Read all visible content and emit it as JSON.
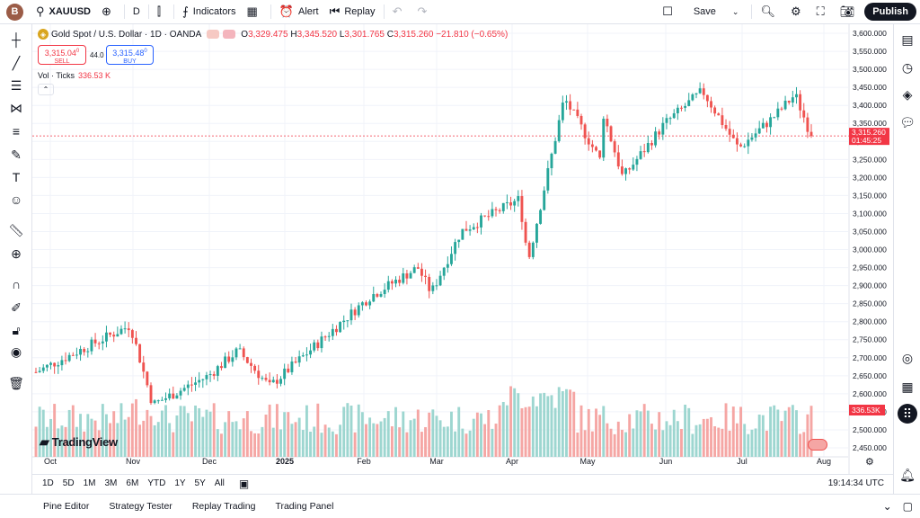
{
  "topbar": {
    "avatar_letter": "B",
    "symbol": "XAUUSD",
    "add_icon": "plus-circle-icon",
    "interval": "D",
    "indicators": "Indicators",
    "alert": "Alert",
    "replay": "Replay",
    "save": "Save",
    "publish": "Publish"
  },
  "legend": {
    "title": "Gold Spot / U.S. Dollar · 1D · OANDA",
    "open_label": "O",
    "open": "3,329.475",
    "high_label": "H",
    "high": "3,345.520",
    "low_label": "L",
    "low": "3,301.765",
    "close_label": "C",
    "close": "3,315.260",
    "change": "−21.810 (−0.65%)"
  },
  "trade": {
    "sell_price": "3,315.04",
    "sell_sup": "0",
    "sell_label": "SELL",
    "spread": "44.0",
    "buy_price": "3,315.48",
    "buy_sup": "0",
    "buy_label": "BUY"
  },
  "volume": {
    "label": "Vol · Ticks",
    "value": "336.53 K"
  },
  "logo": "TradingView",
  "price_axis": {
    "ticks": [
      "3,600.000",
      "3,550.000",
      "3,500.000",
      "3,450.000",
      "3,400.000",
      "3,350.000",
      "3,300.000",
      "3,250.000",
      "3,200.000",
      "3,150.000",
      "3,100.000",
      "3,050.000",
      "3,000.000",
      "2,950.000",
      "2,900.000",
      "2,850.000",
      "2,800.000",
      "2,750.000",
      "2,700.000",
      "2,650.000",
      "2,600.000",
      "2,550.000",
      "2,500.000",
      "2,450.000"
    ],
    "current_price": "3,315.260",
    "countdown": "01:45:25",
    "vol_badge": "336.53K"
  },
  "time_axis": [
    "Oct",
    "Nov",
    "Dec",
    "2025",
    "Feb",
    "Mar",
    "Apr",
    "May",
    "Jun",
    "Jul",
    "Aug"
  ],
  "periods": [
    "1D",
    "5D",
    "1M",
    "3M",
    "6M",
    "YTD",
    "1Y",
    "5Y",
    "All"
  ],
  "clock": "19:14:34 UTC",
  "bottom_tabs": [
    "Pine Editor",
    "Strategy Tester",
    "Replay Trading",
    "Trading Panel"
  ],
  "colors": {
    "up": "#26a69a",
    "down": "#ef5350",
    "up_vol": "#9dd6d0",
    "down_vol": "#f5a6a4"
  },
  "chart_data": {
    "type": "candlestick",
    "symbol": "XAUUSD",
    "ylim": [
      2425,
      3625
    ],
    "x": [
      "Oct",
      "Nov",
      "Dec",
      "2025",
      "Feb",
      "Mar",
      "Apr",
      "May",
      "Jun",
      "Jul",
      "Aug"
    ],
    "keypoints": [
      {
        "t": "Oct",
        "close": 2660
      },
      {
        "t": "Nov",
        "close": 2790
      },
      {
        "t": "Nov",
        "close": 2570
      },
      {
        "t": "Dec",
        "close": 2650
      },
      {
        "t": "Dec",
        "close": 2720
      },
      {
        "t": "2025",
        "close": 2620
      },
      {
        "t": "Feb",
        "close": 2870
      },
      {
        "t": "Feb",
        "close": 2950
      },
      {
        "t": "Mar",
        "close": 2880
      },
      {
        "t": "Mar",
        "close": 3050
      },
      {
        "t": "Apr",
        "close": 3140
      },
      {
        "t": "Apr",
        "close": 2970
      },
      {
        "t": "Apr",
        "close": 3420
      },
      {
        "t": "May",
        "close": 3240
      },
      {
        "t": "May",
        "close": 3430
      },
      {
        "t": "May",
        "close": 3200
      },
      {
        "t": "Jun",
        "close": 3350
      },
      {
        "t": "Jun",
        "close": 3440
      },
      {
        "t": "Jul",
        "close": 3280
      },
      {
        "t": "Jul",
        "close": 3370
      },
      {
        "t": "Jul",
        "close": 3430
      },
      {
        "t": "Aug",
        "close": 3315
      }
    ],
    "last": 3315.26
  }
}
